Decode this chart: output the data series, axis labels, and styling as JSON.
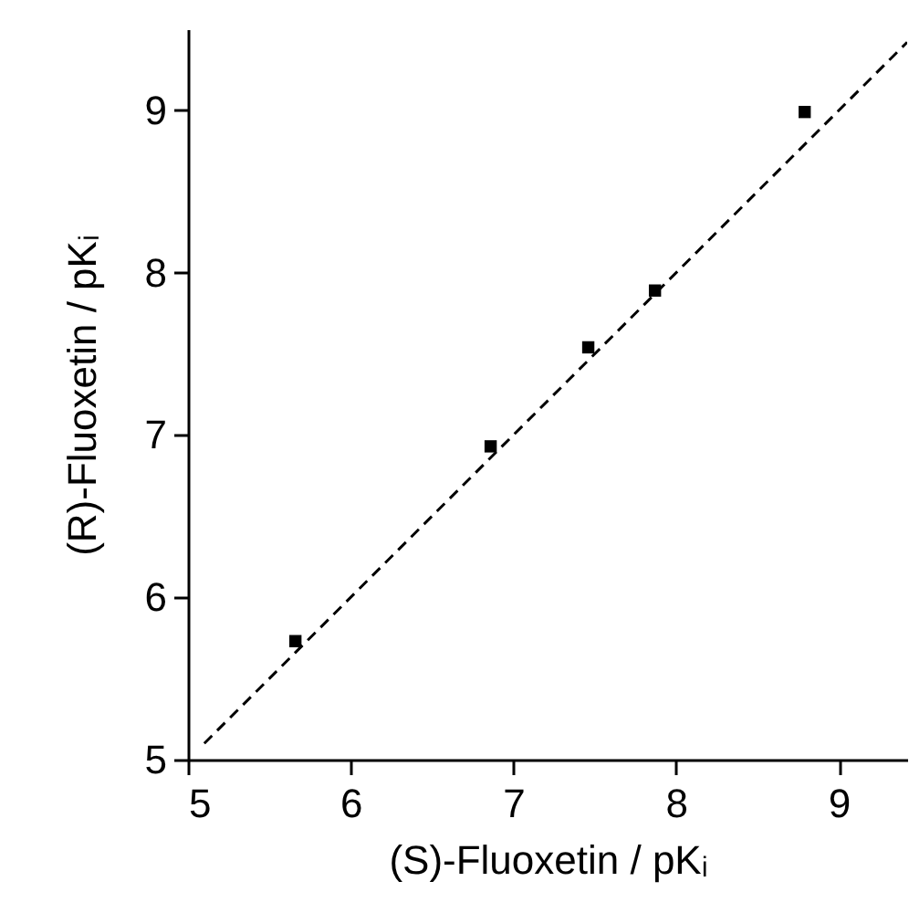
{
  "chart_data": {
    "type": "scatter",
    "xlabel": "(S)-Fluoxetin / pKᵢ",
    "ylabel": "(R)-Fluoxetin / pKᵢ",
    "xlim": [
      5,
      9.42
    ],
    "ylim": [
      5,
      9.5
    ],
    "xticks": [
      5,
      6,
      7,
      8,
      9
    ],
    "yticks": [
      5,
      6,
      7,
      8,
      9
    ],
    "grid": false,
    "marker": "square",
    "series": [
      {
        "color": "#000000",
        "x": [
          5.66,
          6.86,
          7.46,
          7.87,
          8.79
        ],
        "values": [
          5.73,
          6.93,
          7.54,
          7.89,
          8.99
        ]
      },
      {
        "type": "line",
        "color": "#000000",
        "line_style": "dashed",
        "marker": "none",
        "x": [
          5.1,
          9.42
        ],
        "values": [
          5.1,
          9.42
        ]
      }
    ]
  }
}
